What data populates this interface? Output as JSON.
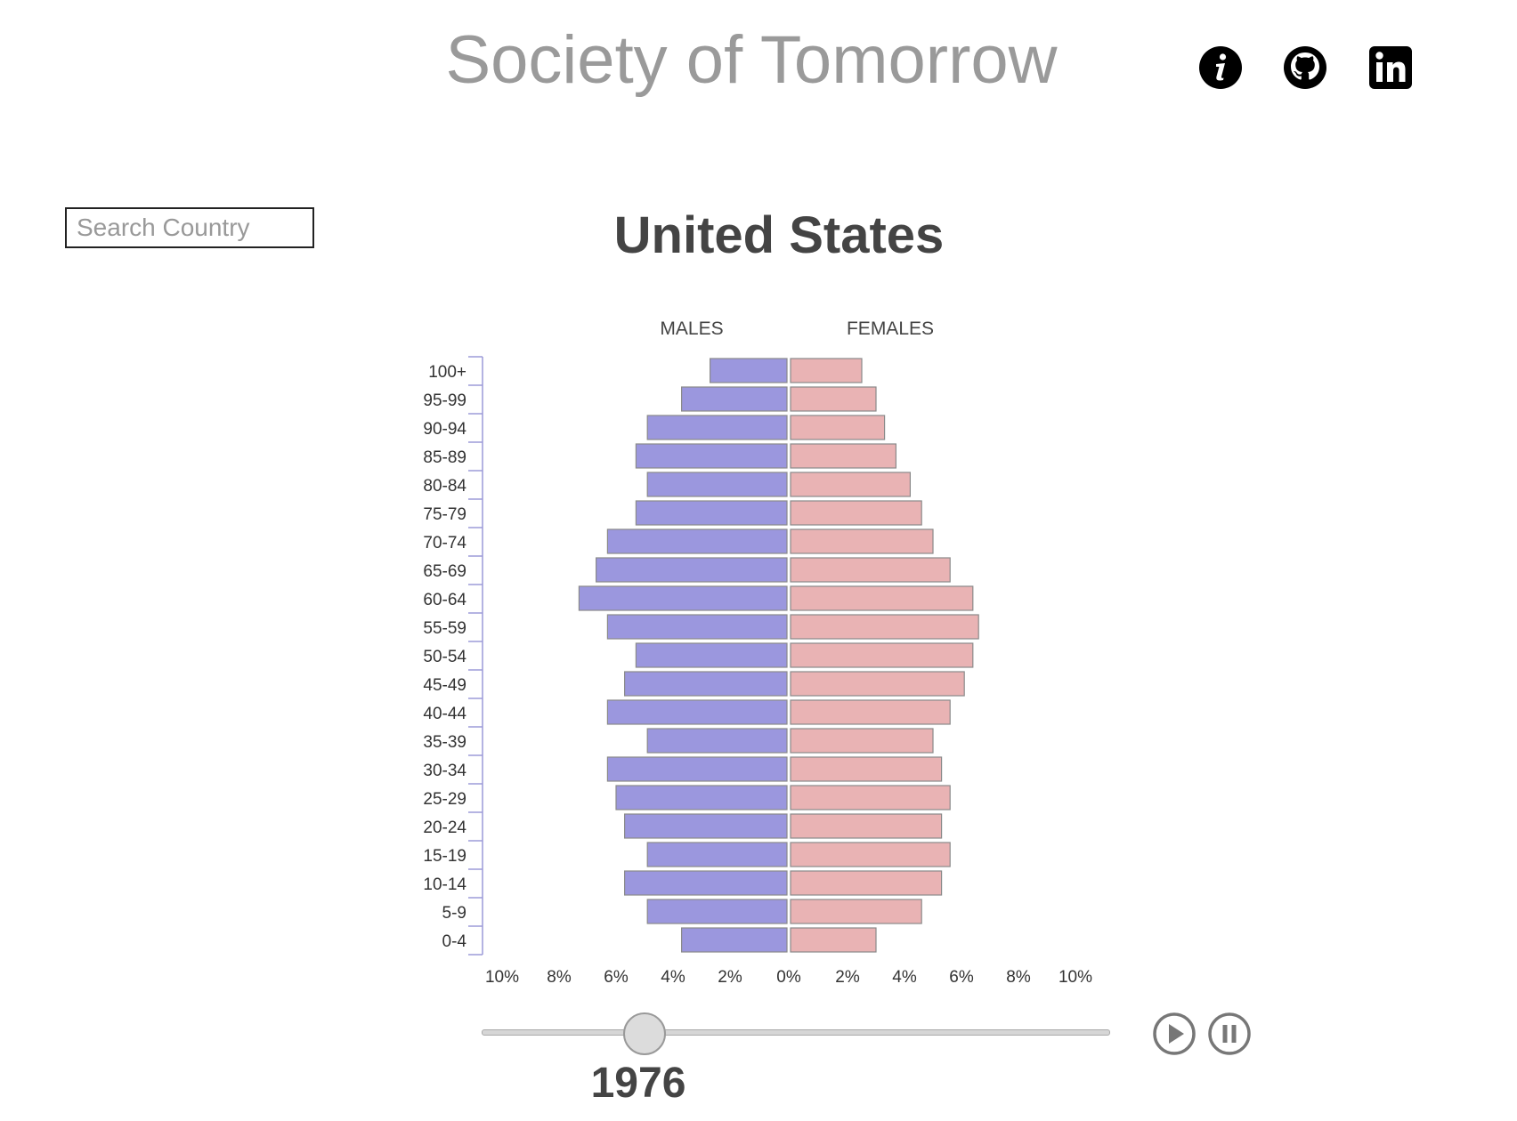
{
  "header": {
    "title": "Society of Tomorrow",
    "icons": [
      {
        "name": "info-icon"
      },
      {
        "name": "github-icon"
      },
      {
        "name": "linkedin-icon"
      }
    ]
  },
  "search": {
    "placeholder": "Search Country"
  },
  "country": "United States",
  "timeline": {
    "year": "1976",
    "progress": 0.26,
    "play_icon": "play-icon",
    "pause_icon": "pause-icon"
  },
  "colors": {
    "males": "#9b97de",
    "females": "#e9b3b4",
    "bar_stroke": "#8a8a8a",
    "axis": "#9c9ad8"
  },
  "chart_data": {
    "type": "bar",
    "orientation": "horizontal",
    "layout": "population-pyramid",
    "series_labels": {
      "left": "MALES",
      "right": "FEMALES"
    },
    "categories": [
      "100+",
      "95-99",
      "90-94",
      "85-89",
      "80-84",
      "75-79",
      "70-74",
      "65-69",
      "60-64",
      "55-59",
      "50-54",
      "45-49",
      "40-44",
      "35-39",
      "30-34",
      "25-29",
      "20-24",
      "15-19",
      "10-14",
      "5-9",
      "0-4"
    ],
    "series": [
      {
        "name": "MALES",
        "values": [
          2.7,
          3.7,
          4.9,
          5.3,
          4.9,
          5.3,
          6.3,
          6.7,
          7.3,
          6.3,
          5.3,
          5.7,
          6.3,
          4.9,
          6.3,
          6.0,
          5.7,
          4.9,
          5.7,
          4.9,
          3.7
        ]
      },
      {
        "name": "FEMALES",
        "values": [
          2.5,
          3.0,
          3.3,
          3.7,
          4.2,
          4.6,
          5.0,
          5.6,
          6.4,
          6.6,
          6.4,
          6.1,
          5.6,
          5.0,
          5.3,
          5.6,
          5.3,
          5.6,
          5.3,
          4.6,
          3.0
        ]
      }
    ],
    "x_ticks_left": [
      "10%",
      "8%",
      "6%",
      "4%",
      "2%",
      "0%"
    ],
    "x_ticks_right": [
      "2%",
      "4%",
      "6%",
      "8%",
      "10%"
    ],
    "xlim": [
      0,
      10
    ],
    "unit": "%"
  }
}
